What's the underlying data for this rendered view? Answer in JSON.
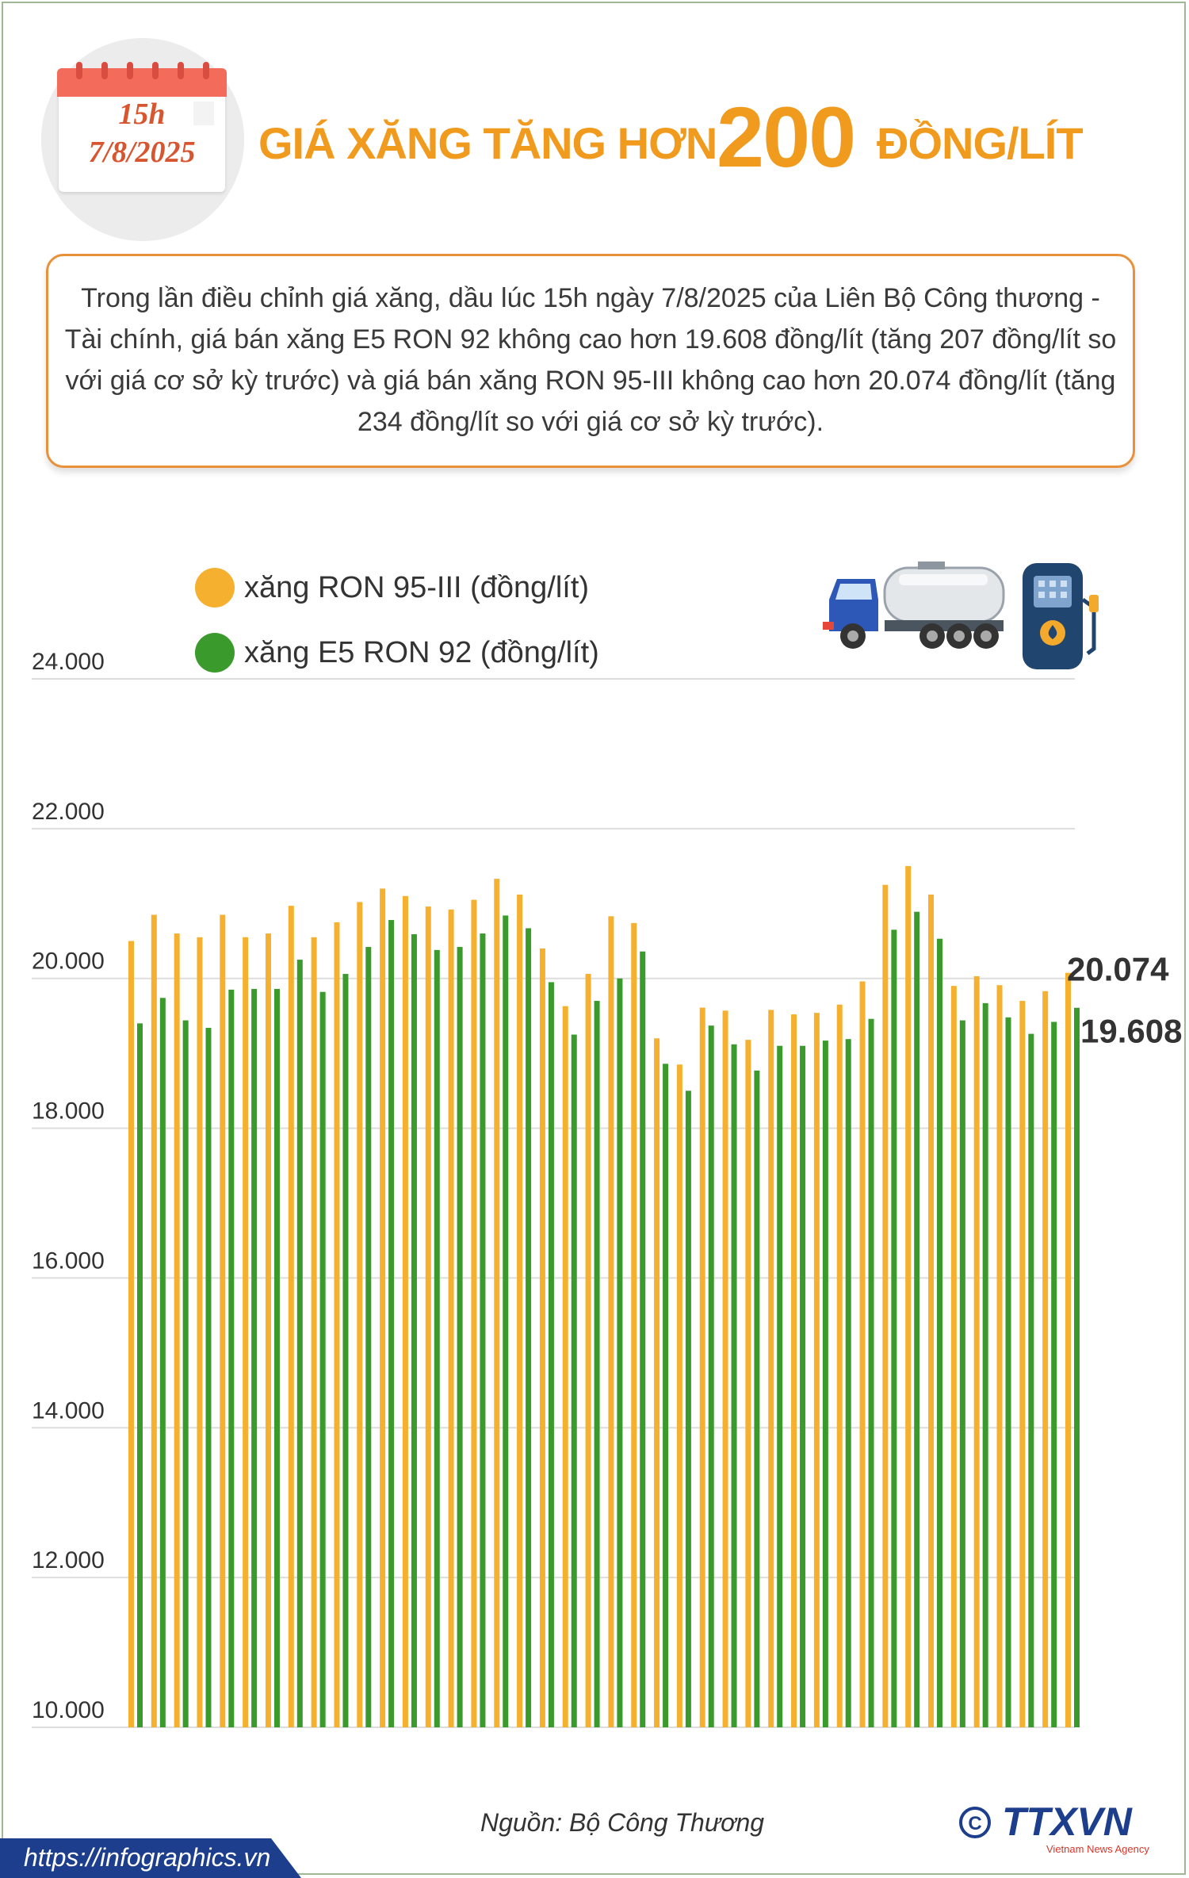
{
  "header": {
    "calendar_time": "15h",
    "calendar_date": "7/8/2025",
    "title_part1": "GIÁ XĂNG TĂNG HƠN",
    "title_number": "200",
    "title_part2": "ĐỒNG/LÍT"
  },
  "description": "Trong lần điều chỉnh giá xăng, dầu lúc 15h ngày 7/8/2025 của Liên Bộ Công thương - Tài chính, giá bán xăng E5 RON 92 không cao hơn 19.608 đồng/lít (tăng 207 đồng/lít so với giá cơ sở kỳ trước) và giá bán xăng RON 95-III không cao hơn 20.074 đồng/lít (tăng 234 đồng/lít so với giá cơ sở kỳ trước).",
  "colors": {
    "ron95": "#f5b030",
    "e5": "#3a9a2c",
    "accent": "#f09a1e",
    "box_border": "#e8913a",
    "grid": "#dddddd"
  },
  "icons": {
    "truck": "fuel-tanker-truck-icon",
    "pump": "fuel-pump-icon",
    "logo": "ttxvn-logo"
  },
  "chart_data": {
    "type": "bar",
    "title": "",
    "xlabel": "",
    "ylabel": "",
    "ylim": [
      10000,
      24000
    ],
    "yticks": [
      "10.000",
      "12.000",
      "14.000",
      "16.000",
      "18.000",
      "20.000",
      "22.000",
      "24.000"
    ],
    "ytick_values": [
      10000,
      12000,
      14000,
      16000,
      18000,
      20000,
      22000,
      24000
    ],
    "grid": true,
    "legend_position": "top-left",
    "series": [
      {
        "name": "xăng RON 95-III (đồng/lít)",
        "color": "#f5b030",
        "values": [
          20500,
          20850,
          20600,
          20550,
          20850,
          20550,
          20600,
          20970,
          20550,
          20750,
          21020,
          21200,
          21100,
          20960,
          20920,
          21050,
          21330,
          21120,
          20400,
          19630,
          20060,
          20830,
          20740,
          19200,
          18850,
          19610,
          19570,
          19180,
          19580,
          19520,
          19540,
          19650,
          19960,
          21250,
          21500,
          21120,
          19900,
          20030,
          19910,
          19700,
          19830,
          20074
        ]
      },
      {
        "name": "xăng E5 RON 92 (đồng/lít)",
        "color": "#3a9a2c",
        "values": [
          19400,
          19740,
          19440,
          19340,
          19850,
          19860,
          19860,
          20250,
          19820,
          20060,
          20420,
          20780,
          20590,
          20380,
          20420,
          20600,
          20840,
          20670,
          19950,
          19250,
          19700,
          20000,
          20360,
          18860,
          18500,
          19370,
          19120,
          18770,
          19100,
          19100,
          19170,
          19190,
          19460,
          20650,
          20890,
          20530,
          19440,
          19670,
          19480,
          19260,
          19420,
          19608
        ]
      }
    ],
    "data_labels": {
      "ron95_last": "20.074",
      "e5_last": "19.608"
    }
  },
  "footer": {
    "source": "Nguồn: Bộ Công Thương",
    "url": "https://infographics.vn",
    "logo_text": "TTXVN",
    "logo_subtext": "Vietnam News Agency"
  }
}
